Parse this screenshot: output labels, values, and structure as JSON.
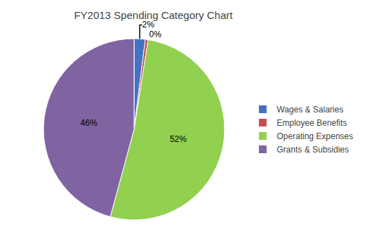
{
  "chart_data": {
    "type": "pie",
    "title": "FY2013 Spending Category Chart",
    "categories": [
      "Wages & Salaries",
      "Employee Benefits",
      "Operating Expenses",
      "Grants & Subsidies"
    ],
    "values": [
      2,
      0.5,
      52,
      46
    ],
    "value_labels": [
      "2%",
      "0%",
      "52%",
      "46%"
    ],
    "colors": [
      "#4472C4",
      "#C0504D",
      "#92D050",
      "#8064A2"
    ],
    "data_labels": true,
    "legend": "right"
  }
}
